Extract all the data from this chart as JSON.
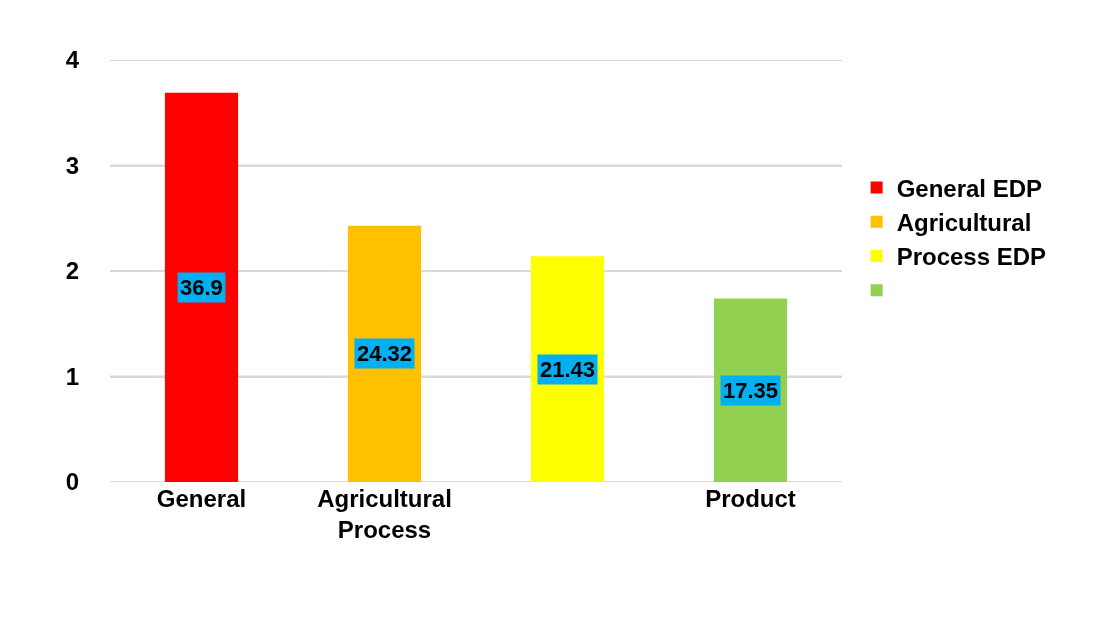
{
  "chart_data": {
    "type": "bar",
    "categories": [
      "General",
      "Agricultural Process",
      null,
      "Product"
    ],
    "series": [
      {
        "name": "General EDP",
        "color": "#ff0000",
        "values": [
          3.69,
          null,
          null,
          null
        ]
      },
      {
        "name": "Agricultural",
        "color": "#ffc000",
        "values": [
          null,
          2.43,
          null,
          null
        ]
      },
      {
        "name": "Process EDP",
        "color": "#ffff00",
        "values": [
          null,
          null,
          2.14,
          null
        ]
      },
      {
        "color": "#92d050",
        "values": [
          null,
          null,
          null,
          1.74
        ]
      }
    ],
    "annotations": [
      "36.9",
      "24.32",
      "21.43",
      "17.35"
    ],
    "ylim": [
      0,
      4
    ],
    "yticks": [
      0,
      1,
      2,
      3,
      4
    ],
    "grid": "y",
    "legend": "right"
  }
}
